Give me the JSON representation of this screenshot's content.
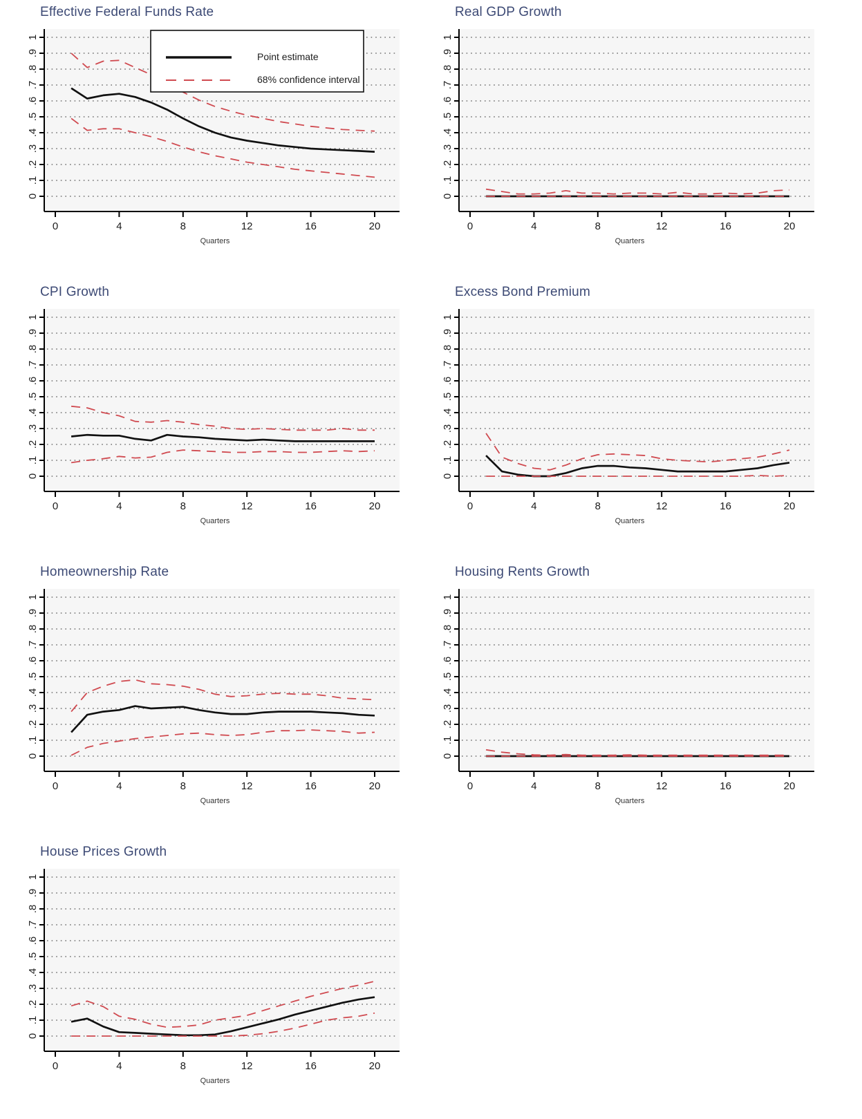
{
  "page": {
    "background": "#ffffff"
  },
  "colors": {
    "title": "#3d4a75",
    "point_estimate": "#111111",
    "confidence_interval": "#d04a50",
    "gridline": "#565656",
    "plot_background": "#f6f6f6",
    "axis": "#000000"
  },
  "legend": {
    "point_label": "Point estimate",
    "ci_label": "68% confidence interval"
  },
  "axis": {
    "x_label": "Quarters",
    "x_ticks": [
      0,
      4,
      8,
      12,
      16,
      20
    ],
    "y_tick_labels": [
      "0",
      ".1",
      ".2",
      ".3",
      ".4",
      ".5",
      ".6",
      ".7",
      ".8",
      ".9",
      "1"
    ],
    "x_range": [
      0,
      20
    ],
    "y_range": [
      0,
      1
    ]
  },
  "chart_data": [
    {
      "type": "line",
      "title": "Effective Federal Funds Rate",
      "xlabel": "Quarters",
      "ylim": [
        0,
        1
      ],
      "grid": true,
      "has_legend": true,
      "legend_position": "top-right",
      "x": [
        1,
        2,
        3,
        4,
        5,
        6,
        7,
        8,
        9,
        10,
        11,
        12,
        13,
        14,
        15,
        16,
        17,
        18,
        19,
        20
      ],
      "series": [
        {
          "name": "Point estimate",
          "style": "solid-black",
          "values": [
            0.68,
            0.615,
            0.635,
            0.645,
            0.625,
            0.59,
            0.545,
            0.49,
            0.44,
            0.4,
            0.37,
            0.35,
            0.335,
            0.32,
            0.31,
            0.3,
            0.295,
            0.29,
            0.285,
            0.28
          ]
        },
        {
          "name": "68% CI upper",
          "style": "dashed-red",
          "values": [
            0.9,
            0.81,
            0.85,
            0.855,
            0.81,
            0.765,
            0.71,
            0.655,
            0.605,
            0.565,
            0.535,
            0.51,
            0.49,
            0.47,
            0.455,
            0.44,
            0.43,
            0.42,
            0.415,
            0.41
          ]
        },
        {
          "name": "68% CI lower",
          "style": "dashed-red",
          "values": [
            0.49,
            0.415,
            0.425,
            0.425,
            0.4,
            0.375,
            0.345,
            0.31,
            0.28,
            0.255,
            0.235,
            0.215,
            0.2,
            0.185,
            0.17,
            0.16,
            0.15,
            0.14,
            0.13,
            0.12
          ]
        }
      ]
    },
    {
      "type": "line",
      "title": "Real GDP Growth",
      "xlabel": "Quarters",
      "ylim": [
        0,
        1
      ],
      "grid": true,
      "has_legend": false,
      "x": [
        1,
        2,
        3,
        4,
        5,
        6,
        7,
        8,
        9,
        10,
        11,
        12,
        13,
        14,
        15,
        16,
        17,
        18,
        19,
        20
      ],
      "series": [
        {
          "name": "Point estimate",
          "style": "solid-black",
          "values": [
            0,
            0,
            0,
            0,
            0,
            0,
            0,
            0,
            0,
            0,
            0,
            0,
            0,
            0,
            0,
            0,
            0,
            0,
            0,
            0
          ]
        },
        {
          "name": "68% CI upper",
          "style": "dashed-red",
          "values": [
            0.045,
            0.03,
            0.015,
            0.015,
            0.02,
            0.035,
            0.02,
            0.02,
            0.015,
            0.02,
            0.02,
            0.015,
            0.025,
            0.015,
            0.015,
            0.02,
            0.015,
            0.02,
            0.035,
            0.04
          ]
        },
        {
          "name": "68% CI lower",
          "style": "dashed-red",
          "values": [
            0,
            0,
            0,
            0,
            0,
            0,
            0,
            0,
            0,
            0,
            0,
            0,
            0,
            0,
            0,
            0,
            0,
            0,
            0,
            0
          ]
        }
      ]
    },
    {
      "type": "line",
      "title": "CPI Growth",
      "xlabel": "Quarters",
      "ylim": [
        0,
        1
      ],
      "grid": true,
      "has_legend": false,
      "x": [
        1,
        2,
        3,
        4,
        5,
        6,
        7,
        8,
        9,
        10,
        11,
        12,
        13,
        14,
        15,
        16,
        17,
        18,
        19,
        20
      ],
      "series": [
        {
          "name": "Point estimate",
          "style": "solid-black",
          "values": [
            0.25,
            0.26,
            0.255,
            0.255,
            0.235,
            0.225,
            0.26,
            0.25,
            0.245,
            0.235,
            0.23,
            0.225,
            0.23,
            0.225,
            0.22,
            0.22,
            0.22,
            0.22,
            0.22,
            0.22
          ]
        },
        {
          "name": "68% CI upper",
          "style": "dashed-red",
          "values": [
            0.44,
            0.43,
            0.4,
            0.38,
            0.345,
            0.34,
            0.35,
            0.34,
            0.325,
            0.315,
            0.3,
            0.295,
            0.3,
            0.295,
            0.29,
            0.29,
            0.29,
            0.3,
            0.29,
            0.29
          ]
        },
        {
          "name": "68% CI lower",
          "style": "dashed-red",
          "values": [
            0.085,
            0.1,
            0.11,
            0.125,
            0.115,
            0.12,
            0.15,
            0.165,
            0.16,
            0.155,
            0.15,
            0.15,
            0.155,
            0.155,
            0.15,
            0.15,
            0.155,
            0.16,
            0.155,
            0.16
          ]
        }
      ]
    },
    {
      "type": "line",
      "title": "Excess Bond Premium",
      "xlabel": "Quarters",
      "ylim": [
        0,
        1
      ],
      "grid": true,
      "has_legend": false,
      "x": [
        1,
        2,
        3,
        4,
        5,
        6,
        7,
        8,
        9,
        10,
        11,
        12,
        13,
        14,
        15,
        16,
        17,
        18,
        19,
        20
      ],
      "series": [
        {
          "name": "Point estimate",
          "style": "solid-black",
          "values": [
            0.13,
            0.03,
            0.01,
            0.0,
            0.0,
            0.02,
            0.05,
            0.065,
            0.065,
            0.055,
            0.05,
            0.04,
            0.03,
            0.03,
            0.03,
            0.03,
            0.04,
            0.05,
            0.07,
            0.085
          ]
        },
        {
          "name": "68% CI upper",
          "style": "dashed-red",
          "values": [
            0.27,
            0.12,
            0.08,
            0.05,
            0.04,
            0.07,
            0.11,
            0.135,
            0.14,
            0.135,
            0.13,
            0.11,
            0.1,
            0.095,
            0.09,
            0.1,
            0.11,
            0.12,
            0.14,
            0.165
          ]
        },
        {
          "name": "68% CI lower",
          "style": "dashed-red",
          "values": [
            0,
            0,
            0,
            0,
            0,
            0,
            0,
            0,
            0,
            0,
            0,
            0,
            0,
            0,
            0,
            0,
            0,
            0.005,
            0,
            0.005
          ]
        }
      ]
    },
    {
      "type": "line",
      "title": "Homeownership Rate",
      "xlabel": "Quarters",
      "ylim": [
        0,
        1
      ],
      "grid": true,
      "has_legend": false,
      "x": [
        1,
        2,
        3,
        4,
        5,
        6,
        7,
        8,
        9,
        10,
        11,
        12,
        13,
        14,
        15,
        16,
        17,
        18,
        19,
        20
      ],
      "series": [
        {
          "name": "Point estimate",
          "style": "solid-black",
          "values": [
            0.15,
            0.26,
            0.28,
            0.29,
            0.315,
            0.3,
            0.305,
            0.31,
            0.29,
            0.275,
            0.265,
            0.265,
            0.275,
            0.28,
            0.28,
            0.28,
            0.275,
            0.27,
            0.26,
            0.255
          ]
        },
        {
          "name": "68% CI upper",
          "style": "dashed-red",
          "values": [
            0.28,
            0.4,
            0.44,
            0.47,
            0.48,
            0.455,
            0.45,
            0.44,
            0.42,
            0.39,
            0.375,
            0.38,
            0.39,
            0.395,
            0.39,
            0.39,
            0.38,
            0.365,
            0.36,
            0.355
          ]
        },
        {
          "name": "68% CI lower",
          "style": "dashed-red",
          "values": [
            0.005,
            0.055,
            0.08,
            0.095,
            0.11,
            0.12,
            0.13,
            0.14,
            0.145,
            0.135,
            0.13,
            0.135,
            0.15,
            0.16,
            0.16,
            0.165,
            0.16,
            0.155,
            0.145,
            0.15
          ]
        }
      ]
    },
    {
      "type": "line",
      "title": "Housing Rents Growth",
      "xlabel": "Quarters",
      "ylim": [
        0,
        1
      ],
      "grid": true,
      "has_legend": false,
      "x": [
        1,
        2,
        3,
        4,
        5,
        6,
        7,
        8,
        9,
        10,
        11,
        12,
        13,
        14,
        15,
        16,
        17,
        18,
        19,
        20
      ],
      "series": [
        {
          "name": "Point estimate",
          "style": "solid-black",
          "values": [
            0,
            0,
            0,
            0,
            0,
            0,
            0,
            0,
            0,
            0,
            0,
            0,
            0,
            0,
            0,
            0,
            0,
            0,
            0,
            0
          ]
        },
        {
          "name": "68% CI upper",
          "style": "dashed-red",
          "values": [
            0.04,
            0.025,
            0.015,
            0.008,
            0.006,
            0.01,
            0.006,
            0.006,
            0.006,
            0.008,
            0.006,
            0.006,
            0.006,
            0.006,
            0.006,
            0.006,
            0.006,
            0.006,
            0.006,
            0.006
          ]
        },
        {
          "name": "68% CI lower",
          "style": "dashed-red",
          "values": [
            0,
            0,
            0,
            0,
            0,
            0,
            0,
            0,
            0,
            0,
            0,
            0,
            0,
            0,
            0,
            0,
            0,
            0,
            0,
            0
          ]
        }
      ]
    },
    {
      "type": "line",
      "title": "House Prices Growth",
      "xlabel": "Quarters",
      "ylim": [
        0,
        1
      ],
      "grid": true,
      "has_legend": false,
      "x": [
        1,
        2,
        3,
        4,
        5,
        6,
        7,
        8,
        9,
        10,
        11,
        12,
        13,
        14,
        15,
        16,
        17,
        18,
        19,
        20
      ],
      "series": [
        {
          "name": "Point estimate",
          "style": "solid-black",
          "values": [
            0.09,
            0.11,
            0.06,
            0.025,
            0.02,
            0.015,
            0.01,
            0.005,
            0.005,
            0.01,
            0.03,
            0.055,
            0.08,
            0.105,
            0.135,
            0.16,
            0.185,
            0.21,
            0.23,
            0.245
          ]
        },
        {
          "name": "68% CI upper",
          "style": "dashed-red",
          "values": [
            0.19,
            0.22,
            0.185,
            0.125,
            0.105,
            0.075,
            0.055,
            0.06,
            0.07,
            0.1,
            0.115,
            0.13,
            0.16,
            0.19,
            0.22,
            0.25,
            0.275,
            0.3,
            0.32,
            0.345
          ]
        },
        {
          "name": "68% CI lower",
          "style": "dashed-red",
          "values": [
            0,
            0,
            0,
            0,
            0,
            0,
            0,
            0,
            0,
            0,
            0,
            0.005,
            0.015,
            0.03,
            0.05,
            0.075,
            0.1,
            0.115,
            0.125,
            0.145
          ]
        }
      ]
    }
  ]
}
